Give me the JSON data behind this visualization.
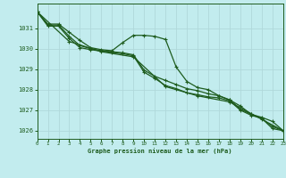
{
  "title": "Graphe pression niveau de la mer (hPa)",
  "bg_color": "#c2ecee",
  "grid_color": "#b0d8da",
  "line_color": "#1e5c1e",
  "xlim": [
    0,
    23
  ],
  "ylim": [
    1025.6,
    1032.2
  ],
  "yticks": [
    1026,
    1027,
    1028,
    1029,
    1030,
    1031
  ],
  "xticks": [
    0,
    1,
    2,
    3,
    4,
    5,
    6,
    7,
    8,
    9,
    10,
    11,
    12,
    13,
    14,
    15,
    16,
    17,
    18,
    19,
    20,
    21,
    22,
    23
  ],
  "series": [
    {
      "x": [
        0,
        1,
        2,
        3,
        4,
        5,
        6,
        7,
        8,
        9,
        10,
        11,
        12,
        13,
        14,
        15,
        16,
        17,
        18,
        19,
        20,
        21,
        22,
        23
      ],
      "y": [
        1031.8,
        1031.2,
        1031.2,
        1030.8,
        1030.4,
        1030.05,
        1029.95,
        1029.9,
        1030.3,
        1030.65,
        1030.65,
        1030.6,
        1030.45,
        1029.1,
        1028.4,
        1028.1,
        1028.0,
        1027.7,
        1027.5,
        1027.2,
        1026.8,
        1026.6,
        1026.1,
        1026.0
      ]
    },
    {
      "x": [
        0,
        1,
        2,
        3,
        4,
        5,
        6,
        7,
        8,
        9,
        10,
        11,
        12,
        13,
        14,
        15,
        16,
        17,
        18,
        19,
        20,
        21,
        22,
        23
      ],
      "y": [
        1031.8,
        1031.15,
        1031.15,
        1030.6,
        1030.15,
        1030.0,
        1029.9,
        1029.85,
        1029.8,
        1029.7,
        1028.95,
        1028.65,
        1028.45,
        1028.25,
        1028.05,
        1027.95,
        1027.8,
        1027.7,
        1027.5,
        1027.05,
        1026.8,
        1026.65,
        1026.45,
        1026.0
      ]
    },
    {
      "x": [
        0,
        1,
        2,
        3,
        4,
        5,
        6,
        7,
        8,
        9,
        10,
        11,
        12,
        13,
        14,
        15,
        16,
        17,
        18,
        19,
        20,
        21,
        22,
        23
      ],
      "y": [
        1031.8,
        1031.1,
        1031.1,
        1030.5,
        1030.05,
        1029.95,
        1029.88,
        1029.82,
        1029.75,
        1029.65,
        1028.85,
        1028.55,
        1028.2,
        1028.05,
        1027.85,
        1027.75,
        1027.65,
        1027.6,
        1027.45,
        1027.0,
        1026.75,
        1026.6,
        1026.2,
        1026.0
      ]
    },
    {
      "x": [
        0,
        3,
        6,
        9,
        12,
        15,
        18,
        21,
        23
      ],
      "y": [
        1031.8,
        1030.35,
        1029.85,
        1029.6,
        1028.15,
        1027.7,
        1027.4,
        1026.55,
        1026.0
      ]
    }
  ]
}
